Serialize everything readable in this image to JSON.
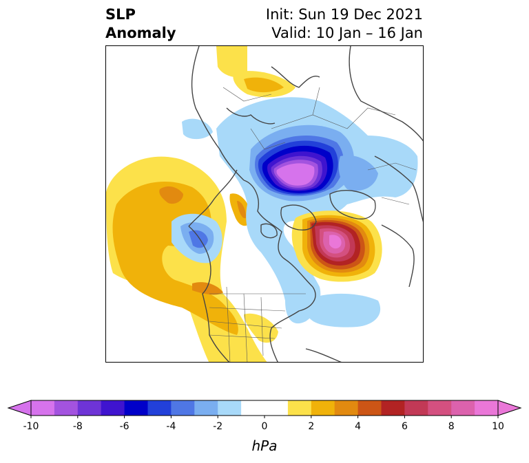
{
  "title": {
    "left_line1": "SLP",
    "left_line2": "Anomaly",
    "right_line1": "Init: Sun 19 Dec 2021",
    "right_line2": "Valid: 10 Jan – 16 Jan"
  },
  "colorbar": {
    "unit": "hPa",
    "ticks": [
      "-10",
      "-8",
      "-6",
      "-4",
      "-2",
      "0",
      "2",
      "4",
      "6",
      "8",
      "10"
    ],
    "colors": [
      "#d673ec",
      "#a353df",
      "#6e34d6",
      "#3f14cf",
      "#0000c9",
      "#2240d9",
      "#4f77e5",
      "#7aaef0",
      "#a8d9f9",
      "#ffffff",
      "#ffffff",
      "#fce14a",
      "#f0b20a",
      "#e28a10",
      "#cc5516",
      "#b22323",
      "#c23956",
      "#d45080",
      "#dc62ad",
      "#ea77d8"
    ],
    "extend_low_color": "#d673ec",
    "extend_high_color": "#ea77d8"
  }
}
